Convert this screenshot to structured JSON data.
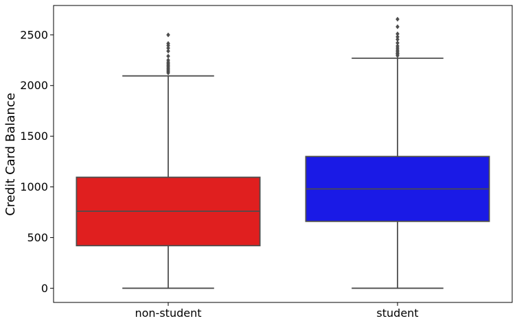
{
  "chart_data": {
    "type": "box",
    "title": "",
    "xlabel": "",
    "ylabel": "Credit Card Balance",
    "ylim": [
      -140,
      2790
    ],
    "yticks": [
      0,
      500,
      1000,
      1500,
      2000,
      2500
    ],
    "grid": false,
    "legend": "none",
    "categories": [
      "non-student",
      "student"
    ],
    "boxes": [
      {
        "category": "non-student",
        "color": "#e01f1f",
        "whisker_low": 0,
        "q1": 420,
        "median": 760,
        "q3": 1095,
        "whisker_high": 2095,
        "outliers": [
          2125,
          2140,
          2155,
          2170,
          2185,
          2200,
          2215,
          2230,
          2250,
          2290,
          2340,
          2370,
          2395,
          2415,
          2500
        ]
      },
      {
        "category": "student",
        "color": "#1a1ae6",
        "whisker_low": 0,
        "q1": 660,
        "median": 980,
        "q3": 1300,
        "whisker_high": 2270,
        "outliers": [
          2295,
          2310,
          2320,
          2335,
          2350,
          2370,
          2390,
          2420,
          2455,
          2480,
          2510,
          2580,
          2655
        ]
      }
    ]
  }
}
